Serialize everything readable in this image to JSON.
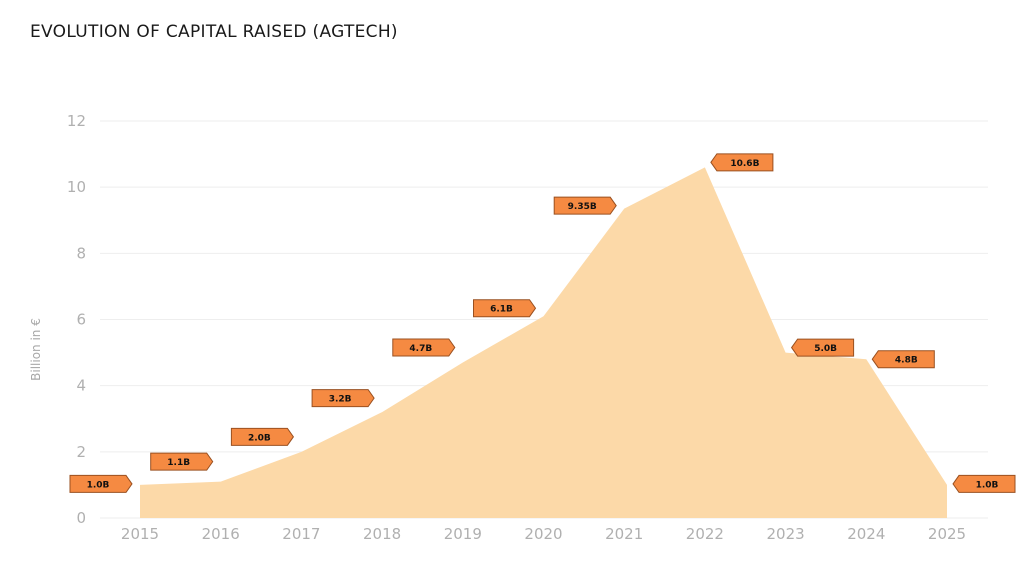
{
  "chart_data": {
    "type": "area",
    "title": "EVOLUTION OF CAPITAL RAISED (AGTECH)",
    "xlabel": "",
    "ylabel": "Billion in €",
    "x": [
      "2015",
      "2016",
      "2017",
      "2018",
      "2019",
      "2020",
      "2021",
      "2022",
      "2023",
      "2024",
      "2025"
    ],
    "values": [
      1.0,
      1.1,
      2.0,
      3.2,
      4.7,
      6.1,
      9.35,
      10.6,
      5.0,
      4.8,
      1.0
    ],
    "data_labels": [
      "1.0B",
      "1.1B",
      "2.0B",
      "3.2B",
      "4.7B",
      "6.1B",
      "9.35B",
      "10.6B",
      "5.0B",
      "4.8B",
      "1.0B"
    ],
    "ylim": [
      0,
      12
    ],
    "yticks": [
      "0",
      "2",
      "4",
      "6",
      "8",
      "10",
      "12"
    ],
    "grid": true,
    "legend": "none",
    "colors": {
      "area": "#fcd9a8",
      "label_fill": "#f58a42",
      "label_border": "#9a5020",
      "grid": "#eeeeee"
    }
  }
}
